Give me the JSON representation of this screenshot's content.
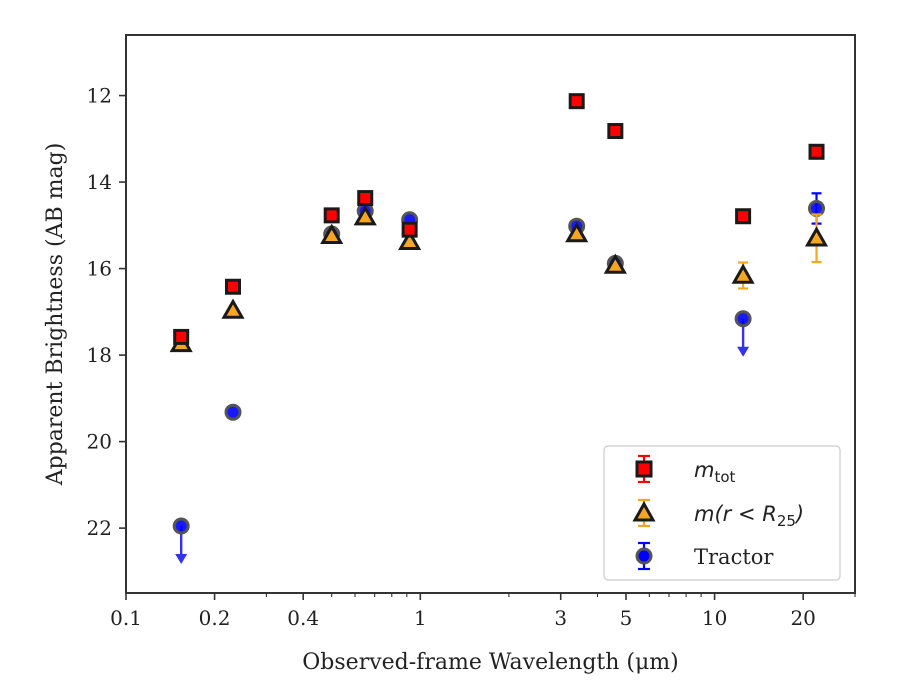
{
  "chart_data": {
    "type": "scatter",
    "xlabel": "Observed-frame Wavelength (μm)",
    "ylabel": "Apparent Brightness (AB mag)",
    "x_scale": "log",
    "xlim": [
      0.1,
      30
    ],
    "ylim": [
      23.5,
      10.6
    ],
    "y_inverted": true,
    "x_ticks": [
      0.1,
      0.2,
      0.4,
      1,
      3,
      5,
      10,
      20
    ],
    "x_tick_labels": [
      "0.1",
      "0.2",
      "0.4",
      "1",
      "3",
      "5",
      "10",
      "20"
    ],
    "y_ticks": [
      12,
      14,
      16,
      18,
      20,
      22
    ],
    "y_tick_labels": [
      "12",
      "14",
      "16",
      "18",
      "20",
      "22"
    ],
    "grid": false,
    "legend_position": "bottom-right",
    "series": [
      {
        "name": "m_tot",
        "legend_main": "m",
        "legend_sub": "tot",
        "marker": "square",
        "color": "#ff0000",
        "edge_color": "#1a1a1a",
        "points": [
          {
            "x": 0.154,
            "y": 17.58,
            "err": 0.1
          },
          {
            "x": 0.231,
            "y": 16.42,
            "err": 0.06
          },
          {
            "x": 0.5,
            "y": 14.77,
            "err": 0.03
          },
          {
            "x": 0.65,
            "y": 14.37,
            "err": 0.03
          },
          {
            "x": 0.92,
            "y": 15.1,
            "err": 0.05
          },
          {
            "x": 3.4,
            "y": 12.13,
            "err": 0.02
          },
          {
            "x": 4.6,
            "y": 12.82,
            "err": 0.02
          },
          {
            "x": 12.5,
            "y": 14.79,
            "err": 0.04
          },
          {
            "x": 22.2,
            "y": 13.3,
            "err": 0.04
          }
        ]
      },
      {
        "name": "m(r < R25)",
        "legend_main": "m(r < R",
        "legend_sub": "25",
        "legend_end": ")",
        "marker": "triangle",
        "color": "#f5a623",
        "edge_color": "#1a1a1a",
        "points": [
          {
            "x": 0.154,
            "y": 17.74,
            "err": 0.05
          },
          {
            "x": 0.231,
            "y": 16.97,
            "err": 0.05
          },
          {
            "x": 0.5,
            "y": 15.24,
            "err": 0.03
          },
          {
            "x": 0.65,
            "y": 14.81,
            "err": 0.03
          },
          {
            "x": 0.92,
            "y": 15.38,
            "err": 0.04
          },
          {
            "x": 3.4,
            "y": 15.2,
            "err": 0.03
          },
          {
            "x": 4.6,
            "y": 15.93,
            "err": 0.03
          },
          {
            "x": 12.5,
            "y": 16.16,
            "err": 0.3
          },
          {
            "x": 22.2,
            "y": 15.3,
            "err": 0.55
          }
        ]
      },
      {
        "name": "Tractor",
        "marker": "circle",
        "color": "#0000ff",
        "edge_color": "#555555",
        "points": [
          {
            "x": 0.154,
            "y": 21.95,
            "upper_limit": true
          },
          {
            "x": 0.231,
            "y": 19.32
          },
          {
            "x": 0.5,
            "y": 15.2
          },
          {
            "x": 0.65,
            "y": 14.67
          },
          {
            "x": 0.92,
            "y": 14.87
          },
          {
            "x": 3.4,
            "y": 15.02
          },
          {
            "x": 4.6,
            "y": 15.88
          },
          {
            "x": 12.5,
            "y": 17.16,
            "upper_limit": true
          },
          {
            "x": 22.2,
            "y": 14.61,
            "err": 0.35
          }
        ]
      }
    ]
  }
}
